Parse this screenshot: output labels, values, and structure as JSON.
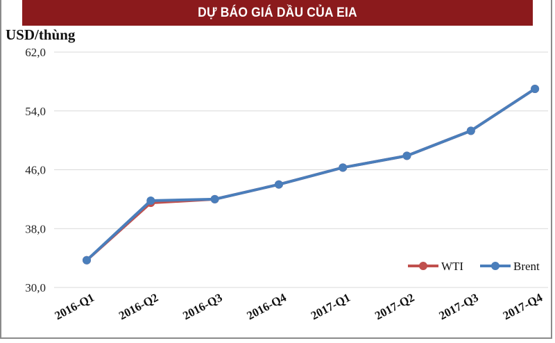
{
  "header": {
    "title": "DỰ BÁO GIÁ DẦU CỦA EIA"
  },
  "chart_data": {
    "type": "line",
    "title": "DỰ BÁO GIÁ DẦU CỦA EIA",
    "ylabel": "USD/thùng",
    "xlabel": "",
    "ylim": [
      30,
      62
    ],
    "yticks": [
      "62,0",
      "54,0",
      "46,0",
      "38,0",
      "30,0"
    ],
    "grid": true,
    "legend_position": "bottom-right",
    "categories": [
      "2016-Q1",
      "2016-Q2",
      "2016-Q3",
      "2016-Q4",
      "2017-Q1",
      "2017-Q2",
      "2017-Q3",
      "2017-Q4"
    ],
    "series": [
      {
        "name": "WTI",
        "color": "#c0504d",
        "values": [
          33.7,
          41.5,
          42.0,
          44.0,
          46.3,
          47.9,
          51.3,
          57.0
        ]
      },
      {
        "name": "Brent",
        "color": "#4a7ebb",
        "values": [
          33.7,
          41.8,
          42.0,
          44.0,
          46.3,
          47.9,
          51.3,
          57.0
        ]
      }
    ]
  },
  "colors": {
    "header_bg": "#8b1a1c",
    "gridline": "#d9d9d9"
  }
}
